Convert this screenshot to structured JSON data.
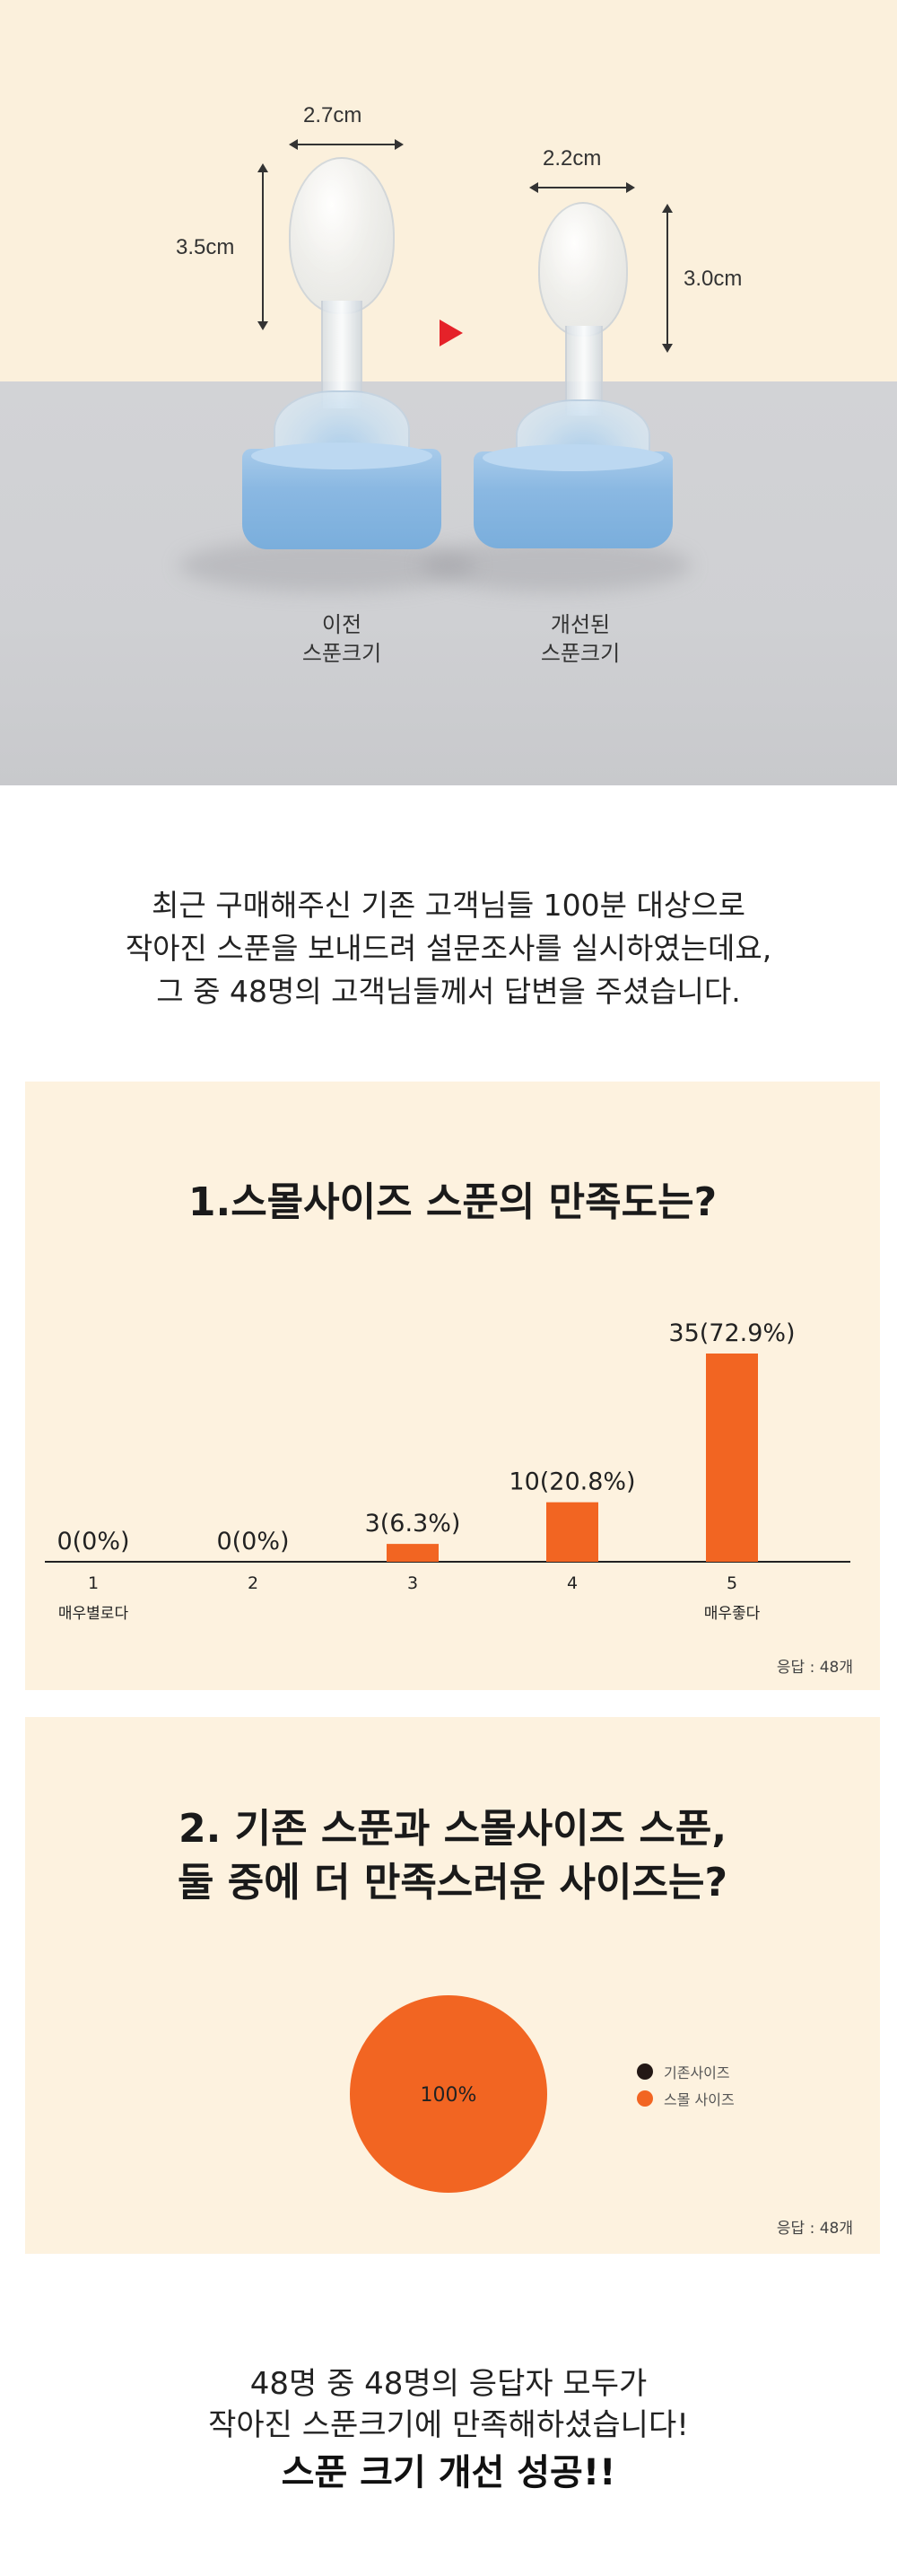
{
  "photo": {
    "left_spoon": {
      "width_label": "2.7cm",
      "height_label": "3.5cm",
      "caption": "이전\n스푼크기"
    },
    "right_spoon": {
      "width_label": "2.2cm",
      "height_label": "3.0cm",
      "caption": "개선된\n스푼크기"
    }
  },
  "intro": {
    "lines": [
      "최근 구매해주신 기존 고객님들 100분 대상으로",
      "작아진 스푼을 보내드려 설문조사를 실시하였는데요,",
      "그 중 48명의 고객님들께서 답변을 주셨습니다."
    ]
  },
  "chart_data": [
    {
      "type": "bar",
      "title": "1.스몰사이즈 스푼의 만족도는?",
      "categories": [
        "1",
        "2",
        "3",
        "4",
        "5"
      ],
      "values": [
        0,
        0,
        3,
        10,
        35
      ],
      "data_labels": [
        "0(0%)",
        "0(0%)",
        "3(6.3%)",
        "10(20.8%)",
        "35(72.9%)"
      ],
      "scale_labels": {
        "min": "매우별로다",
        "max": "매우좋다"
      },
      "ylim": [
        0,
        35
      ],
      "bar_color": "#f26522",
      "footnote": "응답 : 48개"
    },
    {
      "type": "pie",
      "title": "2. 기존 스푼과 스몰사이즈 스푼,\n둘 중에 더 만족스러운 사이즈는?",
      "series": [
        {
          "name": "기존사이즈",
          "value": 0,
          "color": "#231815"
        },
        {
          "name": "스몰 사이즈",
          "value": 100,
          "color": "#f26522"
        }
      ],
      "slice_label": "100%",
      "legend": "right",
      "footnote": "응답 : 48개"
    }
  ],
  "conclusion": {
    "line1": "48명 중 48명의 응답자 모두가",
    "line2": "작아진 스푼크기에 만족해하셨습니다!",
    "headline": "스푼 크기 개선 성공!!"
  }
}
